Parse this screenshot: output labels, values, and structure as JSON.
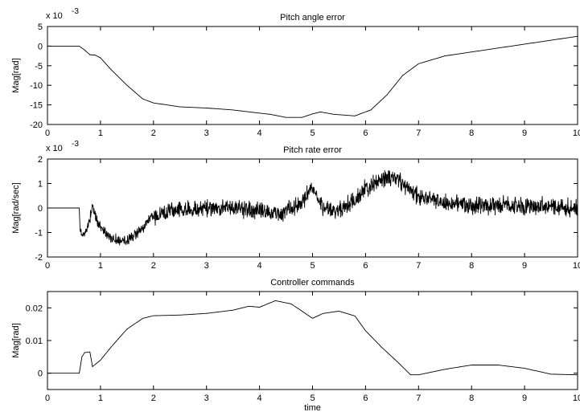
{
  "chart_data": [
    {
      "type": "line",
      "title": "Pitch angle error",
      "ylabel": "Mag[rad]",
      "xlabel": "",
      "scale_label": "x 10",
      "scale_exponent": "-3",
      "xlim": [
        0,
        10
      ],
      "ylim": [
        -20,
        5
      ],
      "xticks": [
        0,
        1,
        2,
        3,
        4,
        5,
        6,
        7,
        8,
        9,
        10
      ],
      "yticks": [
        5,
        0,
        -5,
        -10,
        -15,
        -20
      ],
      "noise": 0,
      "series": [
        {
          "x": [
            0,
            0.6,
            0.7,
            0.8,
            0.9,
            1.0,
            1.2,
            1.5,
            1.8,
            2.0,
            2.5,
            3.0,
            3.5,
            4.0,
            4.2,
            4.5,
            4.8,
            5.0,
            5.15,
            5.4,
            5.8,
            6.1,
            6.4,
            6.7,
            7.0,
            7.5,
            8.0,
            8.5,
            9.0,
            9.5,
            10.0
          ],
          "y": [
            0,
            0,
            -1,
            -2.2,
            -2.3,
            -3,
            -6,
            -10,
            -13.5,
            -14.5,
            -15.5,
            -15.8,
            -16.3,
            -17.1,
            -17.4,
            -18.2,
            -18.2,
            -17.3,
            -16.8,
            -17.4,
            -17.8,
            -16.3,
            -12.5,
            -7.5,
            -4.5,
            -2.5,
            -1.5,
            -0.5,
            0.5,
            1.5,
            2.5
          ]
        }
      ]
    },
    {
      "type": "line",
      "title": "Pitch rate error",
      "ylabel": "Mag[rad/sec]",
      "xlabel": "",
      "scale_label": "x 10",
      "scale_exponent": "-3",
      "xlim": [
        0,
        10
      ],
      "ylim": [
        -2,
        2
      ],
      "xticks": [
        0,
        1,
        2,
        3,
        4,
        5,
        6,
        7,
        8,
        9,
        10
      ],
      "yticks": [
        2,
        1,
        0,
        -1,
        -2
      ],
      "noise": 0.45,
      "series": [
        {
          "x": [
            0,
            0.6,
            0.62,
            0.7,
            0.8,
            0.85,
            0.9,
            1.0,
            1.2,
            1.4,
            1.6,
            1.8,
            2.0,
            2.5,
            3.0,
            3.5,
            4.0,
            4.3,
            4.6,
            4.8,
            5.0,
            5.2,
            5.4,
            5.8,
            6.0,
            6.3,
            6.6,
            6.9,
            7.2,
            7.5,
            8.0,
            9.0,
            10.0
          ],
          "y": [
            0,
            0,
            -1.0,
            -1.1,
            -0.4,
            0.05,
            -0.3,
            -0.8,
            -1.2,
            -1.4,
            -1.2,
            -0.8,
            -0.3,
            -0.05,
            0.0,
            0.05,
            -0.1,
            -0.3,
            0.0,
            0.3,
            0.8,
            0.0,
            -0.2,
            0.3,
            0.8,
            1.2,
            1.2,
            0.6,
            0.3,
            0.2,
            0.1,
            0.1,
            0.0
          ]
        }
      ]
    },
    {
      "type": "line",
      "title": "Controller commands",
      "ylabel": "Mag[rad]",
      "xlabel": "time",
      "scale_label": "",
      "scale_exponent": "",
      "xlim": [
        0,
        10
      ],
      "ylim": [
        -0.005,
        0.025
      ],
      "xticks": [
        0,
        1,
        2,
        3,
        4,
        5,
        6,
        7,
        8,
        9,
        10
      ],
      "yticks": [
        0.02,
        0.01,
        0
      ],
      "noise": 0,
      "series": [
        {
          "x": [
            0,
            0.6,
            0.65,
            0.7,
            0.8,
            0.85,
            1.0,
            1.2,
            1.5,
            1.8,
            2.0,
            2.5,
            3.0,
            3.5,
            3.8,
            4.0,
            4.3,
            4.6,
            5.0,
            5.2,
            5.5,
            5.8,
            6.0,
            6.3,
            6.6,
            6.85,
            7.0,
            7.5,
            8.0,
            8.5,
            9.0,
            9.5,
            10.0
          ],
          "y": [
            0,
            0,
            0.005,
            0.0063,
            0.0065,
            0.002,
            0.004,
            0.008,
            0.0135,
            0.0168,
            0.0176,
            0.0178,
            0.0183,
            0.0193,
            0.0205,
            0.0202,
            0.0222,
            0.0212,
            0.0168,
            0.0183,
            0.019,
            0.0175,
            0.013,
            0.008,
            0.0035,
            -0.0005,
            -0.0005,
            0.0012,
            0.0025,
            0.0025,
            0.0015,
            -0.0003,
            -0.0005
          ]
        }
      ]
    }
  ]
}
